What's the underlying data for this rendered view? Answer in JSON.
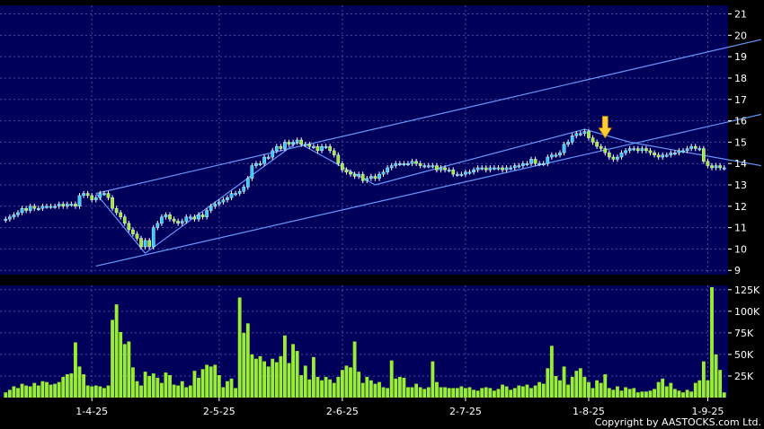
{
  "chart_data": [
    {
      "type": "candlestick",
      "panel": "price",
      "y_ticks": [
        9,
        10,
        11,
        12,
        13,
        14,
        15,
        16,
        17,
        18,
        19,
        20,
        21
      ],
      "ylim": [
        8.8,
        21.4
      ],
      "x_tick_labels": [
        "1-4-25",
        "2-5-25",
        "2-6-25",
        "2-7-25",
        "1-8-25",
        "1-9-25"
      ],
      "x_tick_index": [
        21,
        52,
        82,
        112,
        142,
        171
      ],
      "grid": true,
      "colors": {
        "background": "#00005a",
        "up": "#33ccff",
        "down": "#99ee33",
        "trendline": "#6699ff",
        "arrow": "#ffcc33"
      },
      "annotations": [
        {
          "type": "arrow-down",
          "index": 146,
          "value": 15.2,
          "color": "#ffcc33"
        }
      ],
      "closes": [
        11.4,
        11.5,
        11.6,
        11.7,
        11.9,
        11.8,
        12.0,
        11.9,
        11.9,
        12.0,
        12.0,
        12.0,
        12.0,
        12.1,
        12.0,
        12.1,
        12.1,
        12.0,
        12.5,
        12.6,
        12.5,
        12.3,
        12.4,
        12.6,
        12.6,
        12.4,
        11.9,
        11.7,
        11.5,
        11.2,
        10.9,
        10.7,
        10.5,
        10.1,
        10.4,
        10.1,
        11.0,
        11.2,
        11.5,
        11.6,
        11.4,
        11.3,
        11.2,
        11.3,
        11.5,
        11.5,
        11.4,
        11.6,
        11.5,
        11.8,
        12.0,
        12.1,
        12.2,
        12.3,
        12.4,
        12.6,
        12.6,
        12.7,
        12.9,
        13.3,
        13.9,
        14.0,
        14.0,
        14.3,
        14.3,
        14.6,
        14.8,
        14.7,
        15.0,
        14.9,
        15.0,
        15.1,
        14.9,
        14.9,
        14.8,
        14.8,
        14.6,
        14.8,
        14.8,
        14.6,
        14.4,
        14.0,
        13.7,
        13.6,
        13.5,
        13.4,
        13.5,
        13.2,
        13.3,
        13.4,
        13.3,
        13.5,
        13.6,
        13.8,
        13.9,
        14.0,
        14.0,
        14.0,
        14.0,
        14.1,
        14.0,
        13.9,
        13.9,
        13.9,
        13.9,
        13.7,
        13.8,
        13.7,
        13.7,
        13.5,
        13.5,
        13.5,
        13.6,
        13.6,
        13.7,
        13.8,
        13.8,
        13.7,
        13.8,
        13.8,
        13.8,
        13.7,
        13.8,
        13.8,
        13.9,
        13.9,
        14.0,
        14.0,
        14.2,
        14.0,
        14.0,
        14.0,
        14.3,
        14.4,
        14.4,
        14.5,
        14.9,
        15.0,
        15.3,
        15.4,
        15.4,
        15.5,
        15.2,
        15.0,
        14.8,
        14.7,
        14.5,
        14.3,
        14.2,
        14.3,
        14.5,
        14.6,
        14.7,
        14.7,
        14.6,
        14.7,
        14.6,
        14.5,
        14.4,
        14.3,
        14.4,
        14.4,
        14.5,
        14.5,
        14.6,
        14.6,
        14.7,
        14.8,
        14.7,
        14.7,
        14.1,
        13.9,
        13.8,
        13.9,
        13.8,
        13.8
      ],
      "trendlines": [
        {
          "from": [
            22,
            12.6
          ],
          "to": [
            184,
            19.8
          ]
        },
        {
          "from": [
            22,
            9.2
          ],
          "to": [
            184,
            16.3
          ]
        },
        {
          "from": [
            22,
            12.6
          ],
          "to": [
            34,
            9.8
          ]
        },
        {
          "from": [
            34,
            9.8
          ],
          "to": [
            71,
            15.0
          ]
        },
        {
          "from": [
            71,
            15.0
          ],
          "to": [
            90,
            13.0
          ]
        },
        {
          "from": [
            90,
            13.0
          ],
          "to": [
            141,
            15.6
          ]
        },
        {
          "from": [
            141,
            15.6
          ],
          "to": [
            152,
            15.0
          ]
        },
        {
          "from": [
            152,
            15.0
          ],
          "to": [
            184,
            13.9
          ]
        }
      ]
    },
    {
      "type": "bar",
      "panel": "volume",
      "y_ticks": [
        25000,
        50000,
        75000,
        100000,
        125000
      ],
      "y_tick_labels": [
        "25K",
        "50K",
        "75K",
        "100K",
        "125K"
      ],
      "ylim": [
        0,
        130000
      ],
      "x_tick_labels": [
        "1-4-25",
        "2-5-25",
        "2-6-25",
        "2-7-25",
        "1-8-25",
        "1-9-25"
      ],
      "colors": {
        "bar": "#99ee33"
      },
      "values": [
        6000,
        9000,
        13000,
        11000,
        16000,
        14000,
        13000,
        17000,
        14000,
        19000,
        18000,
        15000,
        16000,
        18000,
        24000,
        27000,
        28000,
        64000,
        36000,
        27000,
        14000,
        13000,
        14000,
        13000,
        11000,
        14000,
        90000,
        108000,
        76000,
        62000,
        65000,
        35000,
        19000,
        14000,
        30000,
        25000,
        28000,
        23000,
        17000,
        29000,
        26000,
        15000,
        14000,
        19000,
        12000,
        14000,
        31000,
        23000,
        33000,
        38000,
        36000,
        38000,
        26000,
        12000,
        19000,
        22000,
        11000,
        116000,
        75000,
        86000,
        50000,
        45000,
        48000,
        42000,
        36000,
        45000,
        41000,
        48000,
        72000,
        40000,
        62000,
        54000,
        26000,
        37000,
        21000,
        47000,
        24000,
        20000,
        24000,
        21000,
        17000,
        24000,
        32000,
        37000,
        35000,
        65000,
        30000,
        17000,
        24000,
        20000,
        16000,
        18000,
        12000,
        11000,
        43000,
        22000,
        24000,
        23000,
        12000,
        12000,
        16000,
        12000,
        10000,
        12000,
        42000,
        18000,
        12000,
        12000,
        11000,
        11000,
        11000,
        13000,
        11000,
        12000,
        9000,
        8000,
        11000,
        12000,
        11000,
        8000,
        10000,
        15000,
        13000,
        9000,
        11000,
        14000,
        13000,
        15000,
        11000,
        14000,
        18000,
        16000,
        34000,
        60000,
        25000,
        20000,
        36000,
        15000,
        24000,
        31000,
        34000,
        24000,
        18000,
        11000,
        20000,
        17000,
        27000,
        11000,
        9000,
        13000,
        8000,
        12000,
        10000,
        11000,
        6000,
        7000,
        7000,
        8000,
        10000,
        18000,
        22000,
        13000,
        17000,
        10000,
        8000,
        6000,
        9000,
        7000,
        17000,
        20000,
        42000,
        20000,
        128000,
        50000,
        32000,
        6000
      ]
    }
  ],
  "copyright": "Copyright by AASTOCKS.com Ltd."
}
